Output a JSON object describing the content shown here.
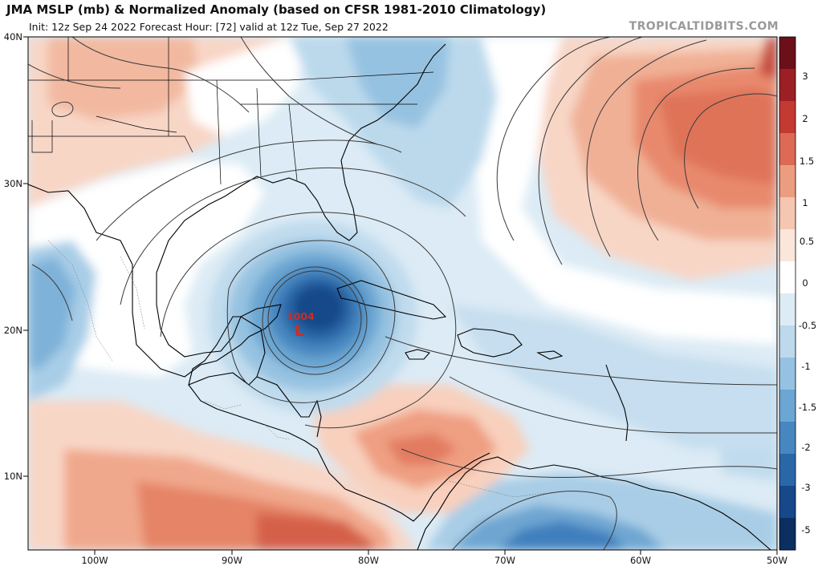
{
  "header": {
    "title": "JMA MSLP (mb) & Normalized Anomaly (based on CFSR 1981-2010 Climatology)",
    "subtitle": "Init: 12z Sep 24 2022    Forecast Hour: [72]    valid at 12z Tue, Sep 27 2022",
    "brand": "TROPICALTIDBITS.COM"
  },
  "map": {
    "lat_labels": [
      "40N",
      "30N",
      "20N",
      "10N"
    ],
    "lon_labels": [
      "100W",
      "90W",
      "80W",
      "70W",
      "60W",
      "50W"
    ],
    "low_pressure": {
      "value": "1004",
      "symbol": "L"
    }
  },
  "colorbar": {
    "labels": [
      "3",
      "2",
      "1.5",
      "1",
      "0.5",
      "0",
      "-0.5",
      "-1",
      "-1.5",
      "-2",
      "-3",
      "-5"
    ],
    "colors": [
      "#6b1019",
      "#9c1f24",
      "#c43a33",
      "#dc6a55",
      "#ec9d80",
      "#f6c7b0",
      "#fbe6dc",
      "#ffffff",
      "#ddebf4",
      "#bdd9ec",
      "#95c2e2",
      "#6ca6d2",
      "#4787c0",
      "#2a67a8",
      "#16488a",
      "#0c2f62"
    ]
  }
}
